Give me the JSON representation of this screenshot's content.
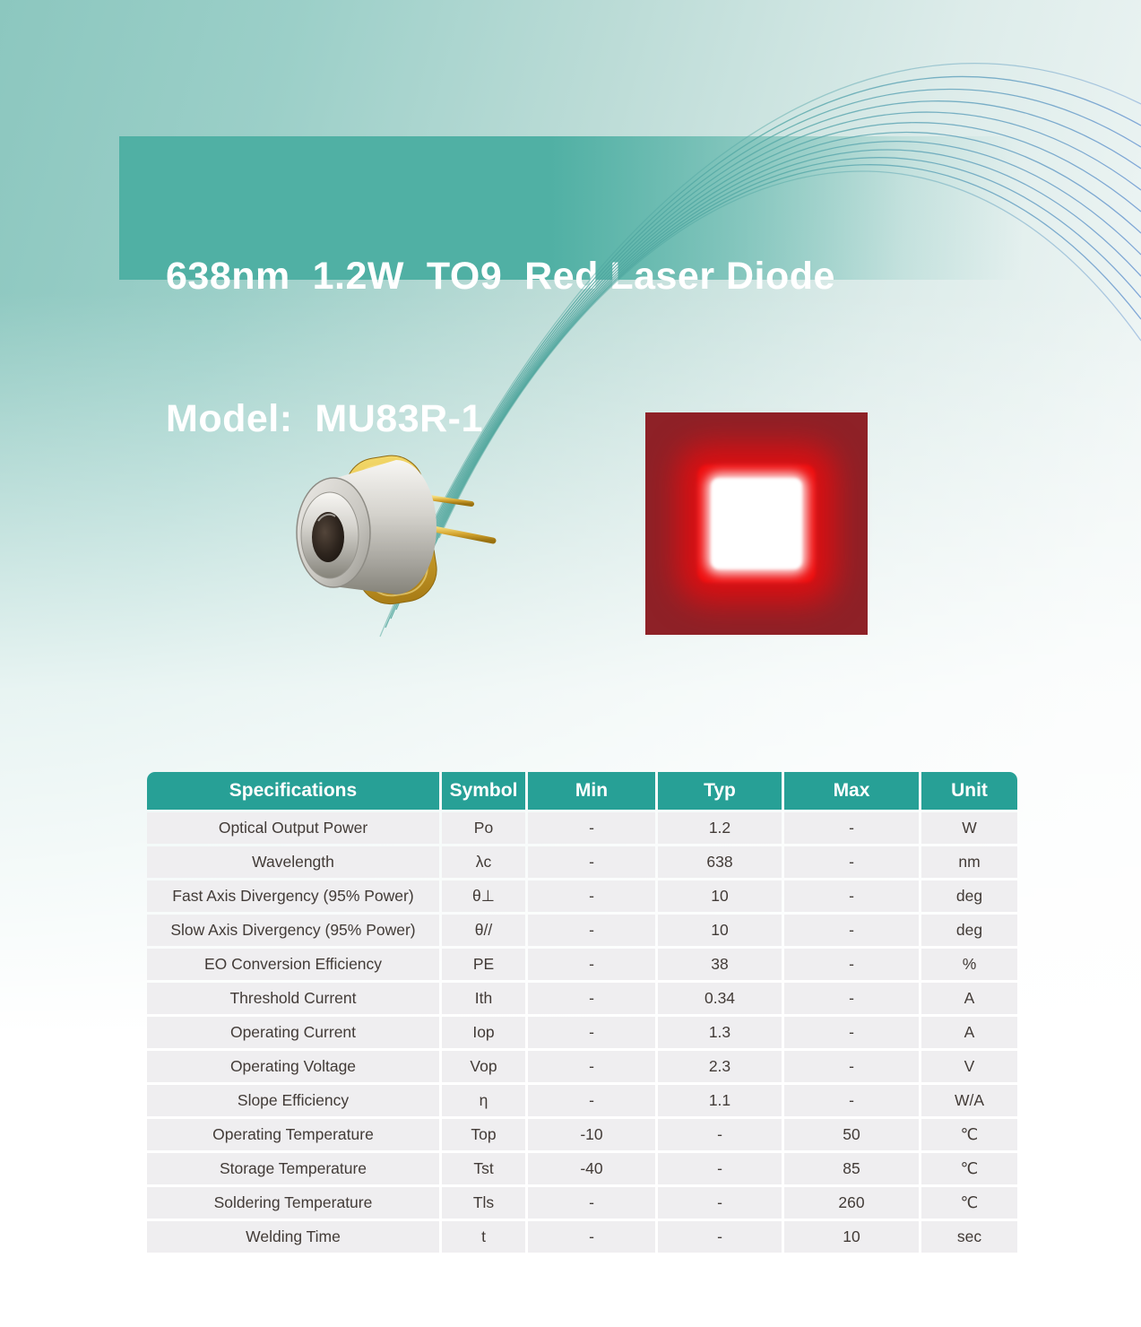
{
  "header": {
    "title_line1": "638nm  1.2W  TO9  Red Laser Diode",
    "title_line2": "Model:  MU83R-1"
  },
  "images": {
    "diode_photo": "TO9 metal-can laser diode package photo",
    "beam_profile": "red square beam profile on dark red background"
  },
  "colors": {
    "banner_teal": "#50b0a4",
    "table_header_teal": "#27a096",
    "table_row_gray": "#efeef0",
    "beam_background": "#8e2127",
    "beam_glow_red": "#ee0f10",
    "beam_center_white": "#ffffff"
  },
  "table": {
    "columns": [
      "Specifications",
      "Symbol",
      "Min",
      "Typ",
      "Max",
      "Unit"
    ],
    "rows": [
      [
        "Optical Output Power",
        "Po",
        "-",
        "1.2",
        "-",
        "W"
      ],
      [
        "Wavelength",
        "λc",
        "-",
        "638",
        "-",
        "nm"
      ],
      [
        "Fast Axis Divergency (95% Power)",
        "θ⊥",
        "-",
        "10",
        "-",
        "deg"
      ],
      [
        "Slow Axis Divergency (95% Power)",
        "θ//",
        "-",
        "10",
        "-",
        "deg"
      ],
      [
        "EO Conversion Efficiency",
        "PE",
        "-",
        "38",
        "-",
        "%"
      ],
      [
        "Threshold Current",
        "Ith",
        "-",
        "0.34",
        "-",
        "A"
      ],
      [
        "Operating Current",
        "Iop",
        "-",
        "1.3",
        "-",
        "A"
      ],
      [
        "Operating Voltage",
        "Vop",
        "-",
        "2.3",
        "-",
        "V"
      ],
      [
        "Slope Efficiency",
        "η",
        "-",
        "1.1",
        "-",
        "W/A"
      ],
      [
        "Operating Temperature",
        "Top",
        "-10",
        "-",
        "50",
        "℃"
      ],
      [
        "Storage Temperature",
        "Tst",
        "-40",
        "-",
        "85",
        "℃"
      ],
      [
        "Soldering Temperature",
        "Tls",
        "-",
        "-",
        "260",
        "℃"
      ],
      [
        "Welding Time",
        "t",
        "-",
        "-",
        "10",
        "sec"
      ]
    ]
  }
}
